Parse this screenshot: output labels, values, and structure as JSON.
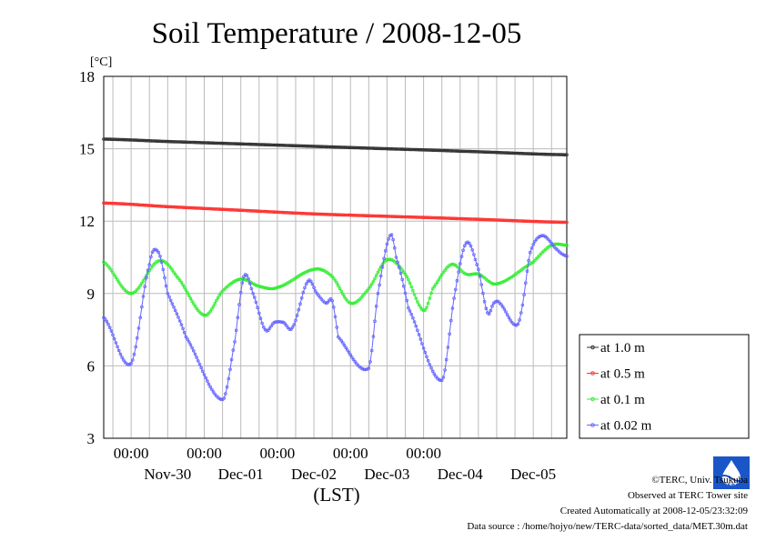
{
  "chart_data": {
    "type": "line",
    "title": "Soil Temperature / 2008-12-05",
    "ylabel": "[°C]",
    "xlabel": "(LST)",
    "ylim": [
      3,
      18
    ],
    "yticks": [
      3,
      6,
      9,
      12,
      15,
      18
    ],
    "xlim": [
      "2008-11-29 15:00",
      "2008-12-05 23:00"
    ],
    "x_time_ticks": [
      "00:00",
      "00:00",
      "00:00",
      "00:00",
      "00:00"
    ],
    "x_date_labels": [
      "Nov-30",
      "Dec-01",
      "Dec-02",
      "Dec-03",
      "Dec-04",
      "Dec-05"
    ],
    "grid": true,
    "legend_position": "right",
    "series": [
      {
        "name": "at 1.0 m",
        "color": "#333333",
        "x": [
          "2008-11-29 15:00",
          "2008-11-30 12:00",
          "2008-12-01 12:00",
          "2008-12-02 12:00",
          "2008-12-03 12:00",
          "2008-12-04 12:00",
          "2008-12-05 23:00"
        ],
        "values": [
          15.4,
          15.3,
          15.2,
          15.1,
          15.0,
          14.9,
          14.75
        ]
      },
      {
        "name": "at 0.5 m",
        "color": "#ff3333",
        "x": [
          "2008-11-29 15:00",
          "2008-11-30 12:00",
          "2008-12-01 12:00",
          "2008-12-02 12:00",
          "2008-12-03 12:00",
          "2008-12-04 12:00",
          "2008-12-05 23:00"
        ],
        "values": [
          12.75,
          12.6,
          12.45,
          12.3,
          12.2,
          12.1,
          11.95
        ]
      },
      {
        "name": "at 0.1 m",
        "color": "#33ee33",
        "x": [
          "2008-11-29 15:00",
          "2008-11-30 00:00",
          "2008-11-30 09:00",
          "2008-11-30 15:00",
          "2008-12-01 00:00",
          "2008-12-01 06:00",
          "2008-12-01 12:00",
          "2008-12-01 18:00",
          "2008-12-02 00:00",
          "2008-12-02 12:00",
          "2008-12-02 18:00",
          "2008-12-03 00:00",
          "2008-12-03 06:00",
          "2008-12-03 12:00",
          "2008-12-03 18:00",
          "2008-12-04 00:00",
          "2008-12-04 03:00",
          "2008-12-04 09:00",
          "2008-12-04 14:00",
          "2008-12-04 18:00",
          "2008-12-05 00:00",
          "2008-12-05 12:00",
          "2008-12-05 18:00",
          "2008-12-05 23:00"
        ],
        "values": [
          10.3,
          9.0,
          10.35,
          9.7,
          8.1,
          9.1,
          9.6,
          9.3,
          9.25,
          10.0,
          9.7,
          8.6,
          9.2,
          10.4,
          9.8,
          8.3,
          9.2,
          10.2,
          9.8,
          9.8,
          9.4,
          10.3,
          11.0,
          11.0
        ]
      },
      {
        "name": "at 0.02 m",
        "color": "#6666ff",
        "x": [
          "2008-11-29 15:00",
          "2008-11-30 00:00",
          "2008-11-30 06:00",
          "2008-11-30 09:00",
          "2008-11-30 12:00",
          "2008-11-30 18:00",
          "2008-12-01 06:00",
          "2008-12-01 10:00",
          "2008-12-01 13:00",
          "2008-12-01 16:00",
          "2008-12-01 20:00",
          "2008-12-01 23:00",
          "2008-12-02 02:00",
          "2008-12-02 05:00",
          "2008-12-02 10:00",
          "2008-12-02 13:00",
          "2008-12-02 16:00",
          "2008-12-02 18:00",
          "2008-12-02 20:00",
          "2008-12-03 06:00",
          "2008-12-03 09:00",
          "2008-12-03 13:00",
          "2008-12-03 15:00",
          "2008-12-03 19:00",
          "2008-12-04 06:00",
          "2008-12-04 10:00",
          "2008-12-04 14:00",
          "2008-12-04 18:00",
          "2008-12-04 21:00",
          "2008-12-04 23:00",
          "2008-12-05 01:00",
          "2008-12-05 06:00",
          "2008-12-05 08:00",
          "2008-12-05 11:00",
          "2008-12-05 15:00",
          "2008-12-05 20:00",
          "2008-12-05 23:00"
        ],
        "values": [
          8.0,
          6.1,
          10.2,
          10.7,
          9.0,
          7.2,
          4.6,
          7.0,
          9.7,
          9.0,
          7.5,
          7.8,
          7.8,
          7.6,
          9.5,
          9.0,
          8.6,
          8.7,
          7.2,
          5.9,
          9.0,
          11.4,
          10.5,
          8.4,
          5.4,
          8.8,
          11.1,
          10.0,
          8.2,
          8.6,
          8.6,
          7.7,
          8.2,
          10.7,
          11.4,
          10.8,
          10.55
        ]
      }
    ]
  },
  "footer": {
    "copyright": "©TERC, Univ. Tsukuba",
    "observed": "Observed at TERC Tower site",
    "created": "Created Automatically at 2008-12-05/23:32:09",
    "source": "Data source : /home/hojyo/new/TERC-data/sorted_data/MET.30m.dat",
    "logo_text": "TERC"
  }
}
